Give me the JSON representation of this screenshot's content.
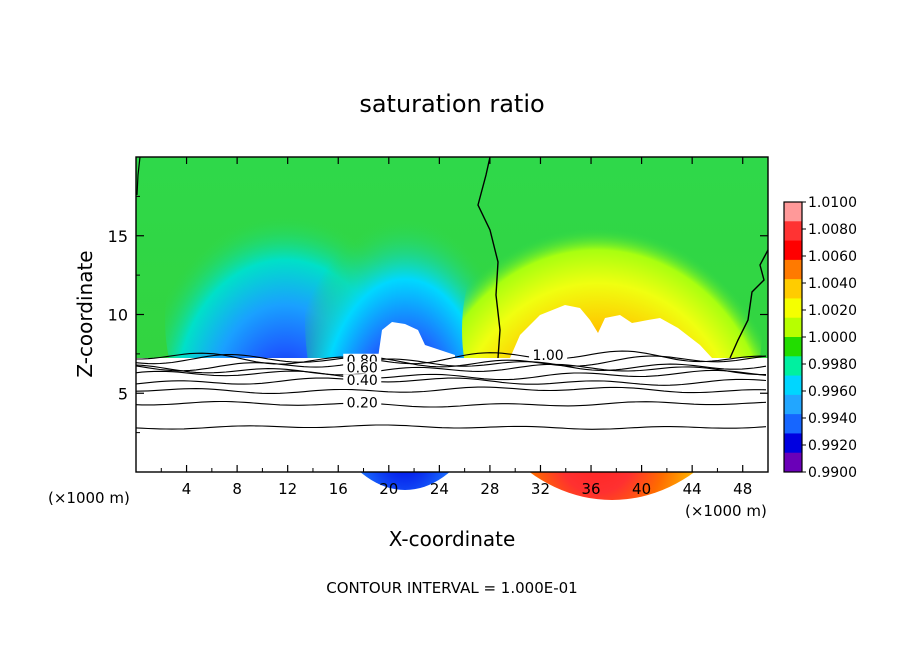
{
  "chart_data": {
    "type": "heatmap",
    "title": "saturation ratio",
    "xlabel": "X-coordinate",
    "ylabel": "Z-coordinate",
    "x_unit_label": "(×1000 m)",
    "xlim": [
      0,
      50
    ],
    "ylim": [
      0,
      20
    ],
    "x_ticks": [
      4,
      8,
      12,
      16,
      20,
      24,
      28,
      32,
      36,
      40,
      44,
      48
    ],
    "y_ticks": [
      5,
      10,
      15
    ],
    "footer": "CONTOUR INTERVAL = 1.000E-01",
    "colorbar": {
      "levels": [
        "1.0100",
        "1.0080",
        "1.0060",
        "1.0040",
        "1.0020",
        "1.0000",
        "0.9980",
        "0.9960",
        "0.9940",
        "0.9920",
        "0.9900"
      ],
      "colors": [
        "#ff9999",
        "#ff3333",
        "#ff0000",
        "#ff7a00",
        "#ffcc00",
        "#f5ff00",
        "#b7ff00",
        "#22dd00",
        "#00f0a0",
        "#00d6ff",
        "#22a6ff",
        "#1666ff",
        "#0000e0",
        "#6a00b8"
      ]
    },
    "contour_labels": [
      {
        "label": "0.80",
        "x": 17.9,
        "y": 7.0
      },
      {
        "label": "0.60",
        "x": 17.9,
        "y": 6.5
      },
      {
        "label": "0.40",
        "x": 17.9,
        "y": 5.7
      },
      {
        "label": "0.20",
        "x": 17.9,
        "y": 4.3
      },
      {
        "label": "1.00",
        "x": 32.6,
        "y": 7.3
      }
    ],
    "contour_levels_below_cloud": [
      0.2,
      0.4,
      0.5,
      0.6,
      0.7,
      0.8,
      0.9,
      1.0
    ],
    "regions": {
      "subsaturated": {
        "x": [
          0,
          28
        ],
        "min": 0.99,
        "max": 0.9985
      },
      "supersaturated": {
        "x": [
          29,
          46
        ],
        "min": 1.0005,
        "max": 1.0095
      },
      "cloud_base_z": 7.2
    }
  }
}
